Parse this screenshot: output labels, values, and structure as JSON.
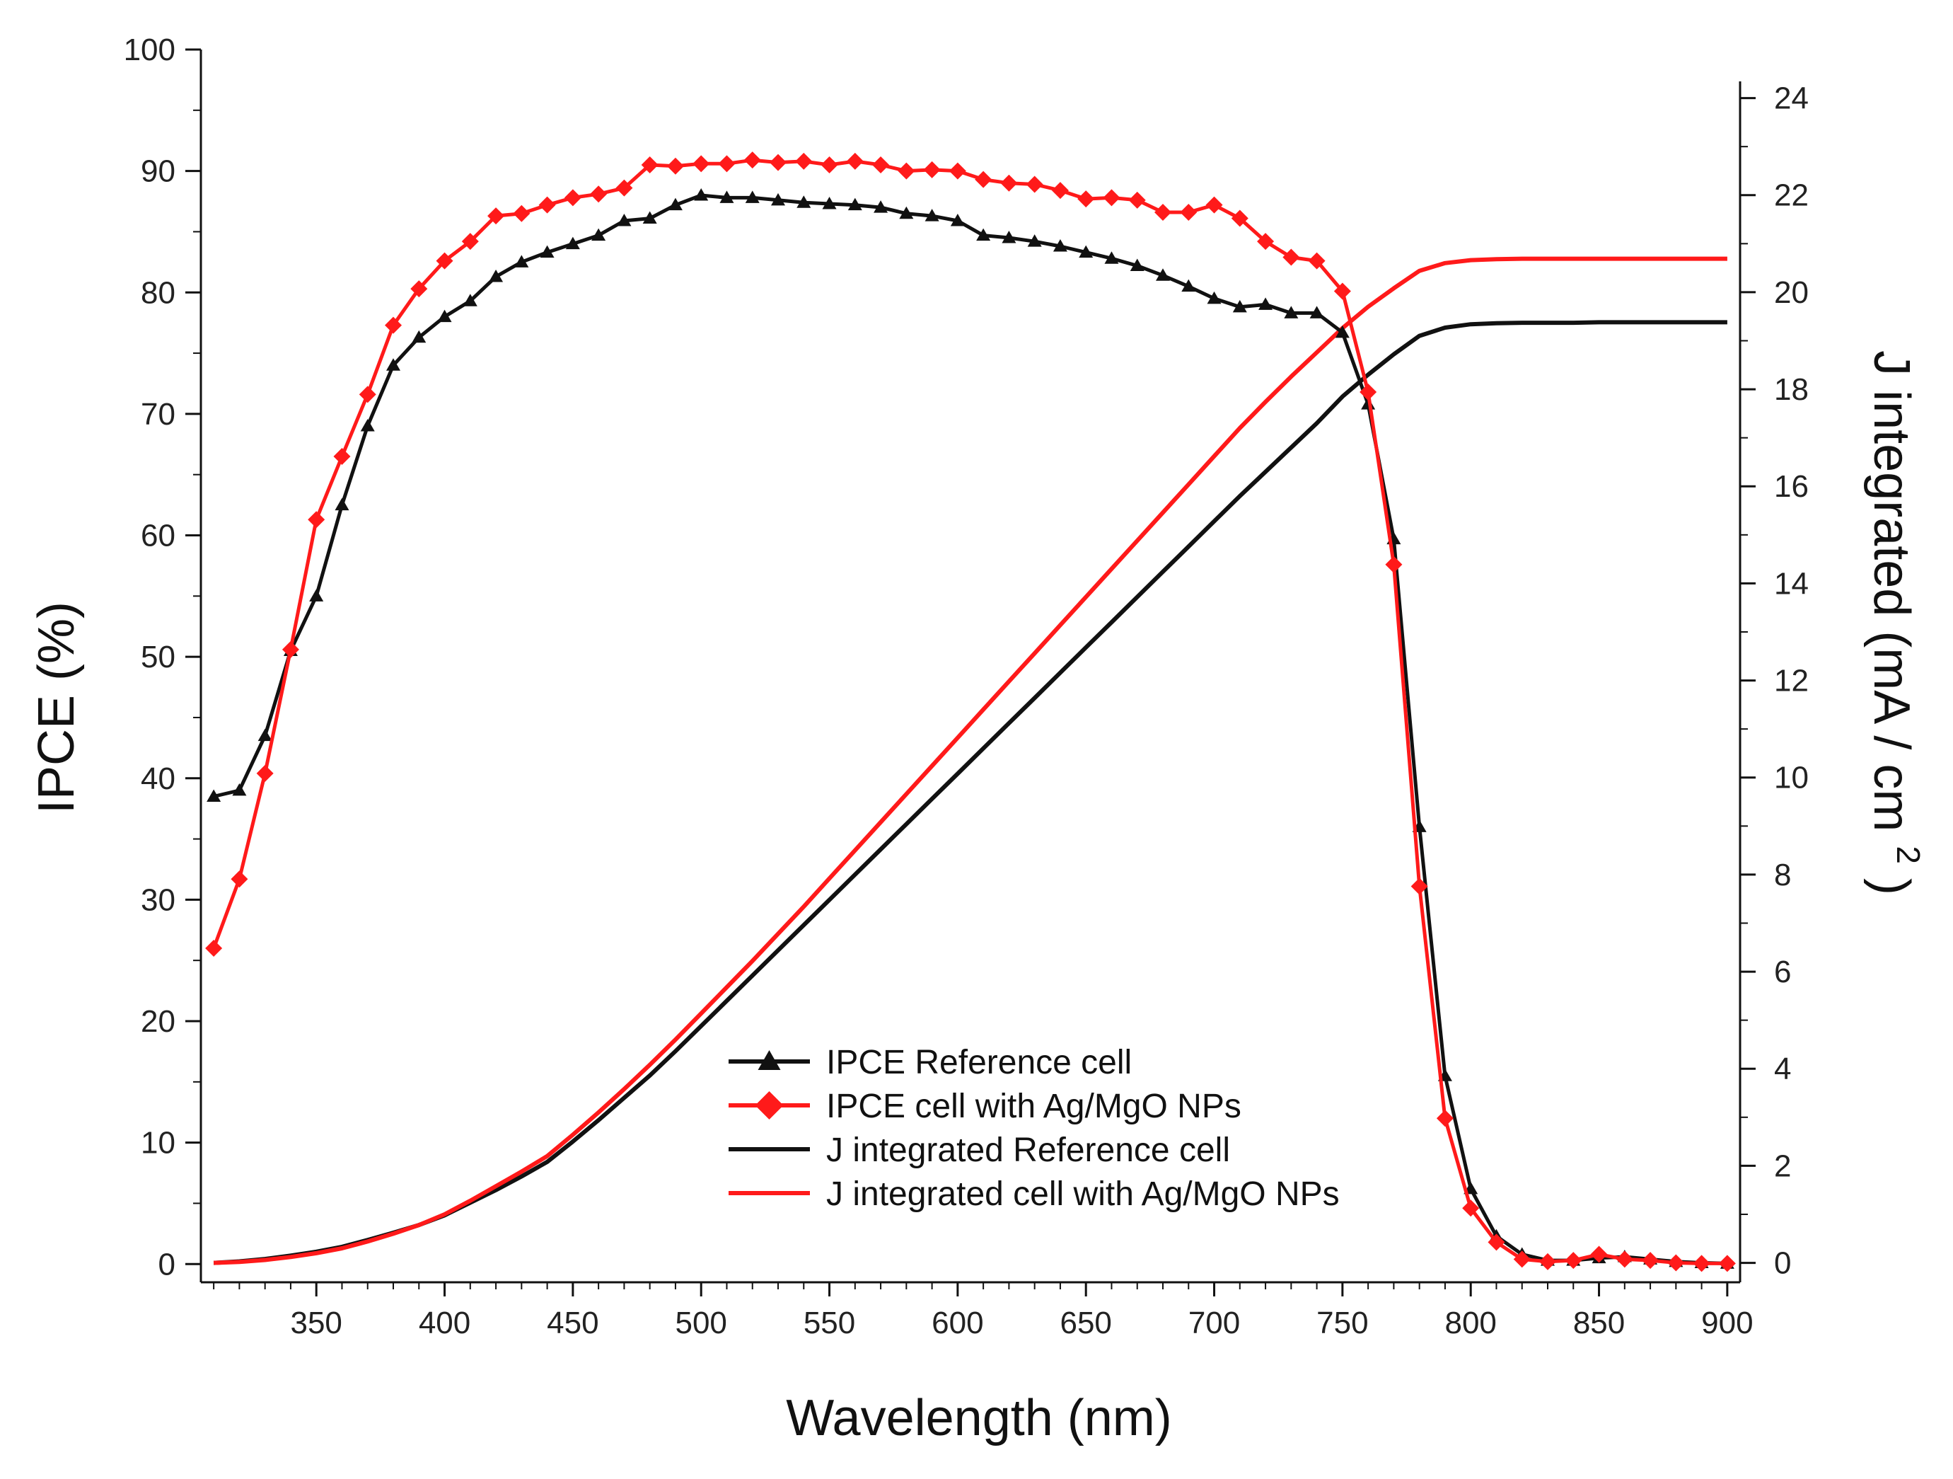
{
  "chart_data": {
    "type": "line",
    "title": "",
    "xlabel": "Wavelength (nm)",
    "ylabel": "IPCE (%)",
    "ylabel_right": "J integrated (mA / cm",
    "ylabel_right_sup": "2",
    "ylabel_right_close": ")",
    "xlim": [
      305,
      905
    ],
    "ylim": [
      -1.5,
      100
    ],
    "ylim_right": [
      -0.4,
      25
    ],
    "xticks": [
      350,
      400,
      450,
      500,
      550,
      600,
      650,
      700,
      750,
      800,
      850,
      900
    ],
    "xtick_labels": [
      "350",
      "400",
      "450",
      "500",
      "550",
      "600",
      "650",
      "700",
      "750",
      "800",
      "850",
      "900"
    ],
    "yticks": [
      0,
      10,
      20,
      30,
      40,
      50,
      60,
      70,
      80,
      90,
      100
    ],
    "ytick_labels": [
      "0",
      "10",
      "20",
      "30",
      "40",
      "50",
      "60",
      "70",
      "80",
      "90",
      "100"
    ],
    "yticks_right": [
      0,
      2,
      4,
      6,
      8,
      10,
      12,
      14,
      16,
      18,
      20,
      22,
      24
    ],
    "ytick_labels_right": [
      "0",
      "2",
      "4",
      "6",
      "8",
      "10",
      "12",
      "14",
      "16",
      "18",
      "20",
      "22",
      "24"
    ],
    "legend_position": "bottom-center",
    "grid": false,
    "x": [
      310,
      320,
      330,
      340,
      350,
      360,
      370,
      380,
      390,
      400,
      410,
      420,
      430,
      440,
      450,
      460,
      470,
      480,
      490,
      500,
      510,
      520,
      530,
      540,
      550,
      560,
      570,
      580,
      590,
      600,
      610,
      620,
      630,
      640,
      650,
      660,
      670,
      680,
      690,
      700,
      710,
      720,
      730,
      740,
      750,
      760,
      770,
      780,
      790,
      800,
      810,
      820,
      830,
      840,
      850,
      860,
      870,
      880,
      890,
      900
    ],
    "series": [
      {
        "name": "IPCE Reference cell",
        "axis": "left",
        "color": "#111111",
        "marker": "triangle",
        "values": [
          38.5,
          39,
          43.5,
          50.5,
          55,
          62.5,
          69,
          74,
          76.3,
          78,
          79.3,
          81.3,
          82.5,
          83.3,
          84,
          84.7,
          85.9,
          86.1,
          87.2,
          88,
          87.8,
          87.8,
          87.6,
          87.4,
          87.3,
          87.2,
          87,
          86.5,
          86.3,
          85.9,
          84.7,
          84.5,
          84.2,
          83.8,
          83.3,
          82.8,
          82.2,
          81.4,
          80.5,
          79.5,
          78.8,
          79,
          78.3,
          78.3,
          76.7,
          70.8,
          59.7,
          36,
          15.5,
          6.2,
          2.3,
          0.8,
          0.3,
          0.3,
          0.5,
          0.6,
          0.4,
          0.2,
          0.1,
          0.05
        ]
      },
      {
        "name": "IPCE cell with Ag/MgO NPs",
        "axis": "left",
        "color": "#ff1a1a",
        "marker": "diamond",
        "values": [
          26,
          31.7,
          40.4,
          50.6,
          61.3,
          66.5,
          71.6,
          77.3,
          80.3,
          82.6,
          84.2,
          86.3,
          86.5,
          87.2,
          87.8,
          88.1,
          88.6,
          90.5,
          90.4,
          90.6,
          90.6,
          90.9,
          90.7,
          90.8,
          90.5,
          90.8,
          90.5,
          90,
          90.1,
          90,
          89.3,
          89,
          88.9,
          88.4,
          87.7,
          87.8,
          87.6,
          86.6,
          86.6,
          87.2,
          86.1,
          84.2,
          82.9,
          82.6,
          80.1,
          71.8,
          57.6,
          31.1,
          12,
          4.6,
          1.8,
          0.4,
          0.2,
          0.3,
          0.8,
          0.4,
          0.3,
          0.1,
          0.05,
          0.05
        ]
      },
      {
        "name": "J integrated Reference cell",
        "axis": "right",
        "color": "#111111",
        "marker": "none",
        "values": [
          0,
          0.03,
          0.08,
          0.15,
          0.23,
          0.33,
          0.47,
          0.62,
          0.78,
          0.98,
          1.24,
          1.5,
          1.78,
          2.08,
          2.5,
          2.94,
          3.4,
          3.86,
          4.36,
          4.88,
          5.4,
          5.92,
          6.44,
          6.96,
          7.48,
          8,
          8.52,
          9.04,
          9.56,
          10.08,
          10.6,
          11.12,
          11.64,
          12.16,
          12.68,
          13.2,
          13.72,
          14.24,
          14.76,
          15.28,
          15.8,
          16.3,
          16.8,
          17.3,
          17.85,
          18.3,
          18.72,
          19.1,
          19.27,
          19.34,
          19.36,
          19.37,
          19.37,
          19.37,
          19.38,
          19.38,
          19.38,
          19.38,
          19.38,
          19.38
        ]
      },
      {
        "name": "J integrated cell with Ag/MgO NPs",
        "axis": "right",
        "color": "#ff1a1a",
        "marker": "none",
        "values": [
          0,
          0.02,
          0.06,
          0.12,
          0.2,
          0.3,
          0.44,
          0.6,
          0.78,
          1.0,
          1.28,
          1.58,
          1.88,
          2.2,
          2.64,
          3.1,
          3.58,
          4.08,
          4.6,
          5.14,
          5.68,
          6.22,
          6.78,
          7.34,
          7.92,
          8.5,
          9.08,
          9.66,
          10.24,
          10.82,
          11.4,
          11.98,
          12.56,
          13.14,
          13.72,
          14.3,
          14.88,
          15.46,
          16.04,
          16.62,
          17.2,
          17.74,
          18.26,
          18.76,
          19.26,
          19.7,
          20.08,
          20.44,
          20.6,
          20.66,
          20.68,
          20.69,
          20.69,
          20.69,
          20.69,
          20.69,
          20.69,
          20.69,
          20.69,
          20.69
        ]
      }
    ]
  }
}
